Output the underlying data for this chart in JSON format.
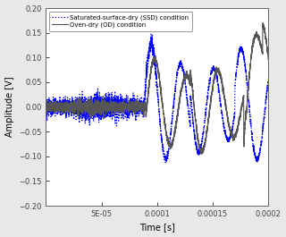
{
  "title": "",
  "xlabel": "Time [s]",
  "ylabel": "Amplitude [V]",
  "xlim": [
    0,
    0.0002
  ],
  "ylim": [
    -0.2,
    0.2
  ],
  "xticks": [
    5e-05,
    0.0001,
    0.00015,
    0.0002
  ],
  "xticklabels": [
    "5E-05",
    "0.0001",
    "0.00015",
    "0.0002"
  ],
  "yticks": [
    -0.2,
    -0.15,
    -0.1,
    -0.05,
    0.0,
    0.05,
    0.1,
    0.15,
    0.2
  ],
  "legend1": "Oven-dry (OD) condition",
  "legend2": "Saturated-surface-dry (SSD) condition",
  "line1_color": "#555555",
  "line2_color": "blue",
  "line2_style": "dotted",
  "background_color": "#e8e8e8",
  "plot_background": "white",
  "seed": 42
}
